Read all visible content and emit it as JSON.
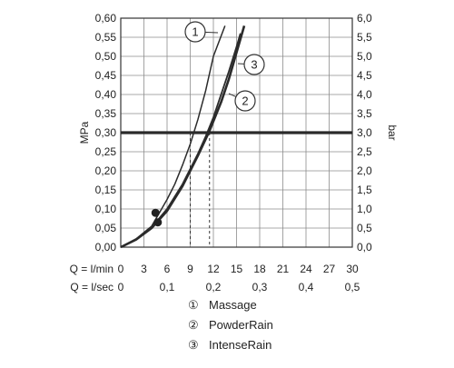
{
  "chart_data": {
    "type": "line",
    "title": "",
    "y_left": {
      "label": "MPa",
      "range": [
        0,
        0.6
      ],
      "ticks": [
        "0,00",
        "0,05",
        "0,10",
        "0,15",
        "0,20",
        "0,25",
        "0,30",
        "0,35",
        "0,40",
        "0,45",
        "0,50",
        "0,55",
        "0,60"
      ]
    },
    "y_right": {
      "label": "bar",
      "range": [
        0,
        6
      ],
      "ticks": [
        "0,0",
        "0,5",
        "1,0",
        "1,5",
        "2,0",
        "2,5",
        "3,0",
        "3,5",
        "4,0",
        "4,5",
        "5,0",
        "5,5",
        "6,0"
      ]
    },
    "x_lmin": {
      "label": "Q = l/min",
      "range": [
        0,
        30
      ],
      "ticks": [
        "0",
        "3",
        "6",
        "9",
        "12",
        "15",
        "18",
        "21",
        "24",
        "27",
        "30"
      ]
    },
    "x_lsec": {
      "label": "Q = l/sec",
      "ticks": [
        {
          "value": 0,
          "text": "0"
        },
        {
          "value": 0.1,
          "text": "0,1"
        },
        {
          "value": 0.2,
          "text": "0,2"
        },
        {
          "value": 0.3,
          "text": "0,3"
        },
        {
          "value": 0.4,
          "text": "0,4"
        },
        {
          "value": 0.5,
          "text": "0,5"
        }
      ]
    },
    "grid": true,
    "reference_line": {
      "y": 0.3,
      "y_label": "3,0"
    },
    "series": [
      {
        "id": "1",
        "name": "Massage",
        "x": [
          0,
          2,
          4,
          5,
          6,
          7,
          8,
          9,
          10,
          11,
          12,
          13.5
        ],
        "y": [
          0,
          0.022,
          0.055,
          0.09,
          0.125,
          0.165,
          0.215,
          0.27,
          0.335,
          0.41,
          0.5,
          0.58
        ]
      },
      {
        "id": "2",
        "name": "PowderRain",
        "x": [
          0,
          2,
          4,
          6,
          8,
          10,
          11.5,
          13,
          14,
          15,
          16
        ],
        "y": [
          0,
          0.02,
          0.05,
          0.095,
          0.16,
          0.24,
          0.305,
          0.38,
          0.44,
          0.51,
          0.58
        ]
      },
      {
        "id": "3",
        "name": "IntenseRain",
        "x": [
          0,
          2,
          4,
          6,
          8,
          10,
          11,
          12,
          13,
          14,
          15,
          15.5
        ],
        "y": [
          0,
          0.021,
          0.052,
          0.1,
          0.165,
          0.245,
          0.29,
          0.34,
          0.4,
          0.46,
          0.525,
          0.56
        ]
      }
    ],
    "markers": [
      {
        "x": 4.5,
        "y": 0.09
      },
      {
        "x": 4.8,
        "y": 0.065
      }
    ],
    "dashed_guides": [
      {
        "x": 9
      },
      {
        "x": 11.5
      }
    ],
    "legend": [
      {
        "symbol": "①",
        "label": "Massage"
      },
      {
        "symbol": "②",
        "label": "PowderRain"
      },
      {
        "symbol": "③",
        "label": "IntenseRain"
      }
    ],
    "legend_position": "bottom",
    "callouts": [
      {
        "series": "1",
        "text": "1"
      },
      {
        "series": "3",
        "text": "3"
      },
      {
        "series": "2",
        "text": "2"
      }
    ]
  }
}
